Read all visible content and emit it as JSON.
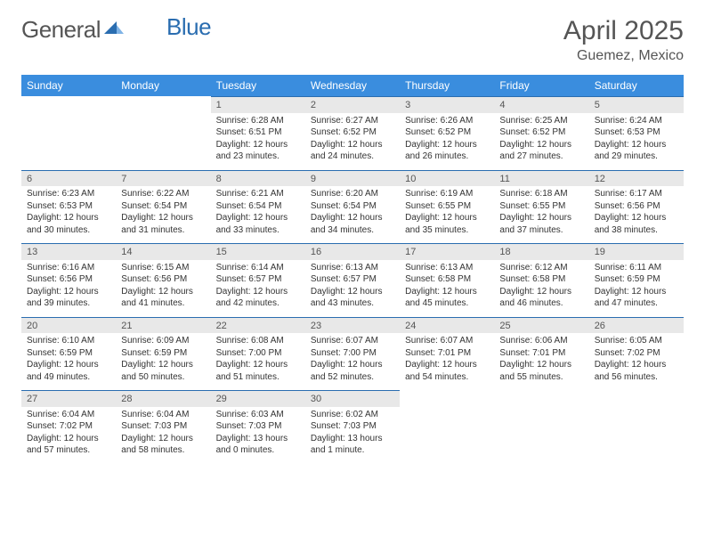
{
  "logo": {
    "text1": "General",
    "text2": "Blue"
  },
  "title": {
    "month": "April 2025",
    "location": "Guemez, Mexico"
  },
  "colors": {
    "header_bg": "#3a8dde",
    "header_text": "#ffffff",
    "numrow_bg": "#e8e8e8",
    "border": "#2a6db0",
    "text": "#333333",
    "muted": "#555555"
  },
  "daysOfWeek": [
    "Sunday",
    "Monday",
    "Tuesday",
    "Wednesday",
    "Thursday",
    "Friday",
    "Saturday"
  ],
  "weeks": [
    {
      "cells": [
        {
          "empty": true
        },
        {
          "empty": true
        },
        {
          "num": "1",
          "sunrise": "Sunrise: 6:28 AM",
          "sunset": "Sunset: 6:51 PM",
          "daylight1": "Daylight: 12 hours",
          "daylight2": "and 23 minutes."
        },
        {
          "num": "2",
          "sunrise": "Sunrise: 6:27 AM",
          "sunset": "Sunset: 6:52 PM",
          "daylight1": "Daylight: 12 hours",
          "daylight2": "and 24 minutes."
        },
        {
          "num": "3",
          "sunrise": "Sunrise: 6:26 AM",
          "sunset": "Sunset: 6:52 PM",
          "daylight1": "Daylight: 12 hours",
          "daylight2": "and 26 minutes."
        },
        {
          "num": "4",
          "sunrise": "Sunrise: 6:25 AM",
          "sunset": "Sunset: 6:52 PM",
          "daylight1": "Daylight: 12 hours",
          "daylight2": "and 27 minutes."
        },
        {
          "num": "5",
          "sunrise": "Sunrise: 6:24 AM",
          "sunset": "Sunset: 6:53 PM",
          "daylight1": "Daylight: 12 hours",
          "daylight2": "and 29 minutes."
        }
      ]
    },
    {
      "cells": [
        {
          "num": "6",
          "sunrise": "Sunrise: 6:23 AM",
          "sunset": "Sunset: 6:53 PM",
          "daylight1": "Daylight: 12 hours",
          "daylight2": "and 30 minutes."
        },
        {
          "num": "7",
          "sunrise": "Sunrise: 6:22 AM",
          "sunset": "Sunset: 6:54 PM",
          "daylight1": "Daylight: 12 hours",
          "daylight2": "and 31 minutes."
        },
        {
          "num": "8",
          "sunrise": "Sunrise: 6:21 AM",
          "sunset": "Sunset: 6:54 PM",
          "daylight1": "Daylight: 12 hours",
          "daylight2": "and 33 minutes."
        },
        {
          "num": "9",
          "sunrise": "Sunrise: 6:20 AM",
          "sunset": "Sunset: 6:54 PM",
          "daylight1": "Daylight: 12 hours",
          "daylight2": "and 34 minutes."
        },
        {
          "num": "10",
          "sunrise": "Sunrise: 6:19 AM",
          "sunset": "Sunset: 6:55 PM",
          "daylight1": "Daylight: 12 hours",
          "daylight2": "and 35 minutes."
        },
        {
          "num": "11",
          "sunrise": "Sunrise: 6:18 AM",
          "sunset": "Sunset: 6:55 PM",
          "daylight1": "Daylight: 12 hours",
          "daylight2": "and 37 minutes."
        },
        {
          "num": "12",
          "sunrise": "Sunrise: 6:17 AM",
          "sunset": "Sunset: 6:56 PM",
          "daylight1": "Daylight: 12 hours",
          "daylight2": "and 38 minutes."
        }
      ]
    },
    {
      "cells": [
        {
          "num": "13",
          "sunrise": "Sunrise: 6:16 AM",
          "sunset": "Sunset: 6:56 PM",
          "daylight1": "Daylight: 12 hours",
          "daylight2": "and 39 minutes."
        },
        {
          "num": "14",
          "sunrise": "Sunrise: 6:15 AM",
          "sunset": "Sunset: 6:56 PM",
          "daylight1": "Daylight: 12 hours",
          "daylight2": "and 41 minutes."
        },
        {
          "num": "15",
          "sunrise": "Sunrise: 6:14 AM",
          "sunset": "Sunset: 6:57 PM",
          "daylight1": "Daylight: 12 hours",
          "daylight2": "and 42 minutes."
        },
        {
          "num": "16",
          "sunrise": "Sunrise: 6:13 AM",
          "sunset": "Sunset: 6:57 PM",
          "daylight1": "Daylight: 12 hours",
          "daylight2": "and 43 minutes."
        },
        {
          "num": "17",
          "sunrise": "Sunrise: 6:13 AM",
          "sunset": "Sunset: 6:58 PM",
          "daylight1": "Daylight: 12 hours",
          "daylight2": "and 45 minutes."
        },
        {
          "num": "18",
          "sunrise": "Sunrise: 6:12 AM",
          "sunset": "Sunset: 6:58 PM",
          "daylight1": "Daylight: 12 hours",
          "daylight2": "and 46 minutes."
        },
        {
          "num": "19",
          "sunrise": "Sunrise: 6:11 AM",
          "sunset": "Sunset: 6:59 PM",
          "daylight1": "Daylight: 12 hours",
          "daylight2": "and 47 minutes."
        }
      ]
    },
    {
      "cells": [
        {
          "num": "20",
          "sunrise": "Sunrise: 6:10 AM",
          "sunset": "Sunset: 6:59 PM",
          "daylight1": "Daylight: 12 hours",
          "daylight2": "and 49 minutes."
        },
        {
          "num": "21",
          "sunrise": "Sunrise: 6:09 AM",
          "sunset": "Sunset: 6:59 PM",
          "daylight1": "Daylight: 12 hours",
          "daylight2": "and 50 minutes."
        },
        {
          "num": "22",
          "sunrise": "Sunrise: 6:08 AM",
          "sunset": "Sunset: 7:00 PM",
          "daylight1": "Daylight: 12 hours",
          "daylight2": "and 51 minutes."
        },
        {
          "num": "23",
          "sunrise": "Sunrise: 6:07 AM",
          "sunset": "Sunset: 7:00 PM",
          "daylight1": "Daylight: 12 hours",
          "daylight2": "and 52 minutes."
        },
        {
          "num": "24",
          "sunrise": "Sunrise: 6:07 AM",
          "sunset": "Sunset: 7:01 PM",
          "daylight1": "Daylight: 12 hours",
          "daylight2": "and 54 minutes."
        },
        {
          "num": "25",
          "sunrise": "Sunrise: 6:06 AM",
          "sunset": "Sunset: 7:01 PM",
          "daylight1": "Daylight: 12 hours",
          "daylight2": "and 55 minutes."
        },
        {
          "num": "26",
          "sunrise": "Sunrise: 6:05 AM",
          "sunset": "Sunset: 7:02 PM",
          "daylight1": "Daylight: 12 hours",
          "daylight2": "and 56 minutes."
        }
      ]
    },
    {
      "cells": [
        {
          "num": "27",
          "sunrise": "Sunrise: 6:04 AM",
          "sunset": "Sunset: 7:02 PM",
          "daylight1": "Daylight: 12 hours",
          "daylight2": "and 57 minutes."
        },
        {
          "num": "28",
          "sunrise": "Sunrise: 6:04 AM",
          "sunset": "Sunset: 7:03 PM",
          "daylight1": "Daylight: 12 hours",
          "daylight2": "and 58 minutes."
        },
        {
          "num": "29",
          "sunrise": "Sunrise: 6:03 AM",
          "sunset": "Sunset: 7:03 PM",
          "daylight1": "Daylight: 13 hours",
          "daylight2": "and 0 minutes."
        },
        {
          "num": "30",
          "sunrise": "Sunrise: 6:02 AM",
          "sunset": "Sunset: 7:03 PM",
          "daylight1": "Daylight: 13 hours",
          "daylight2": "and 1 minute."
        },
        {
          "empty": true
        },
        {
          "empty": true
        },
        {
          "empty": true
        }
      ]
    }
  ]
}
